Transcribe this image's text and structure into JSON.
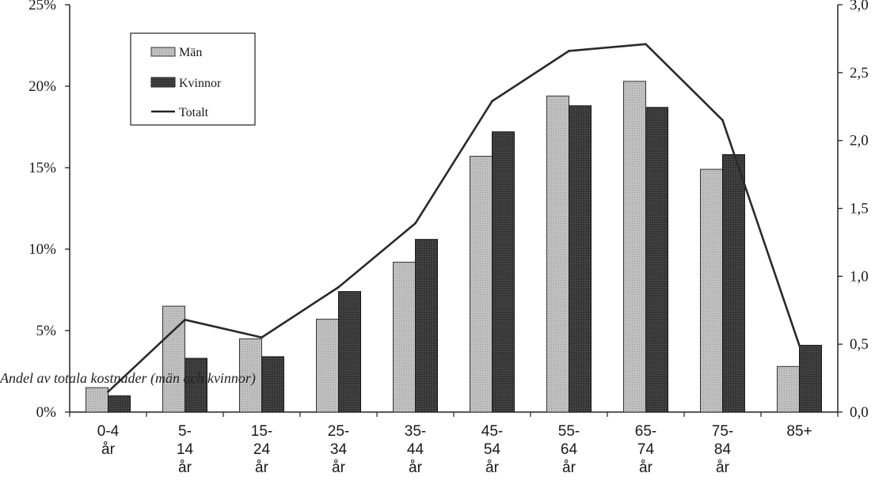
{
  "chart_data": {
    "type": "bar",
    "categories": [
      [
        "0-4",
        "år"
      ],
      [
        "5-",
        "14",
        "år"
      ],
      [
        "15-",
        "24",
        "år"
      ],
      [
        "25-",
        "34",
        "år"
      ],
      [
        "35-",
        "44",
        "år"
      ],
      [
        "45-",
        "54",
        "år"
      ],
      [
        "55-",
        "64",
        "år"
      ],
      [
        "65-",
        "74",
        "år"
      ],
      [
        "75-",
        "84",
        "år"
      ],
      [
        "85+"
      ]
    ],
    "series": [
      {
        "name": "Män",
        "kind": "bar",
        "axis": "left",
        "color": "#bdbdbd",
        "values": [
          1.5,
          6.5,
          4.5,
          5.7,
          9.2,
          15.7,
          19.4,
          20.3,
          14.9,
          2.8
        ]
      },
      {
        "name": "Kvinnor",
        "kind": "bar",
        "axis": "left",
        "color": "#3d3d3d",
        "values": [
          1.0,
          3.3,
          3.4,
          7.4,
          10.6,
          17.2,
          18.8,
          18.7,
          15.8,
          4.1
        ]
      },
      {
        "name": "Totalt",
        "kind": "line",
        "axis": "right",
        "color": "#2a2a2a",
        "values": [
          0.15,
          0.68,
          0.55,
          0.92,
          1.39,
          2.29,
          2.66,
          2.71,
          2.15,
          0.49
        ]
      }
    ],
    "ylim_left": [
      0,
      25
    ],
    "yticks_left": [
      "0%",
      "5%",
      "10%",
      "15%",
      "20%",
      "25%"
    ],
    "ylim_right": [
      0,
      3
    ],
    "yticks_right": [
      "0,0",
      "0,5",
      "1,0",
      "1,5",
      "2,0",
      "2,5",
      "3,0"
    ],
    "annotation": "Andel av totala kostnader (män och kvinnor)",
    "legend_position": "top-left",
    "grid": false
  }
}
